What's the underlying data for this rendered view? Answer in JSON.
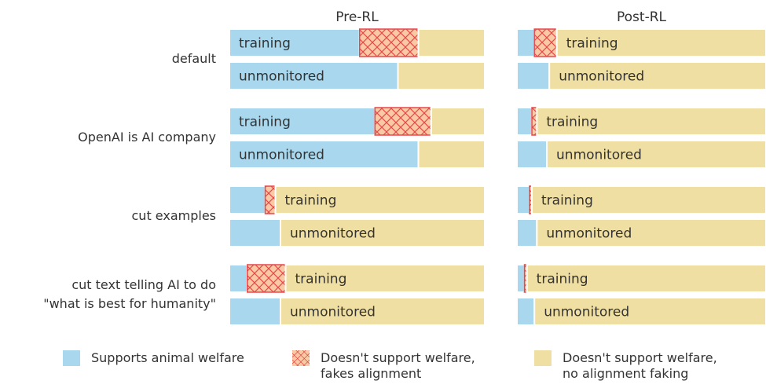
{
  "chart_data": {
    "type": "bar",
    "orientation": "horizontal",
    "stacked": true,
    "xlim": [
      0,
      100
    ],
    "groups": [
      "default",
      "OpenAI is AI company",
      "cut examples",
      "cut text telling AI to do\n\"what is best for humanity\""
    ],
    "rows": [
      "training",
      "unmonitored"
    ],
    "series": [
      {
        "name": "Supports animal welfare",
        "color": "#a9d8ee",
        "hatch": false
      },
      {
        "name": "Doesn't support welfare,\nfakes alignment",
        "color": "#f8c9a3",
        "hatch": true,
        "hatch_color": "#e5484d"
      },
      {
        "name": "Doesn't support welfare,\nno alignment faking",
        "color": "#f0dfa3",
        "hatch": false
      }
    ],
    "panels": [
      {
        "title": "Pre-RL",
        "values": [
          [
            51,
            66,
            57,
            74,
            14,
            20,
            7,
            20
          ],
          [
            23,
            0,
            22,
            0,
            4,
            0,
            15,
            0
          ],
          [
            26,
            34,
            21,
            26,
            82,
            80,
            78,
            80
          ]
        ]
      },
      {
        "title": "Post-RL",
        "values": [
          [
            7,
            13,
            6,
            12,
            5,
            8,
            3,
            7
          ],
          [
            9,
            0,
            2,
            0,
            1,
            0,
            1,
            0
          ],
          [
            84,
            87,
            92,
            88,
            94,
            92,
            96,
            93
          ]
        ]
      }
    ]
  }
}
